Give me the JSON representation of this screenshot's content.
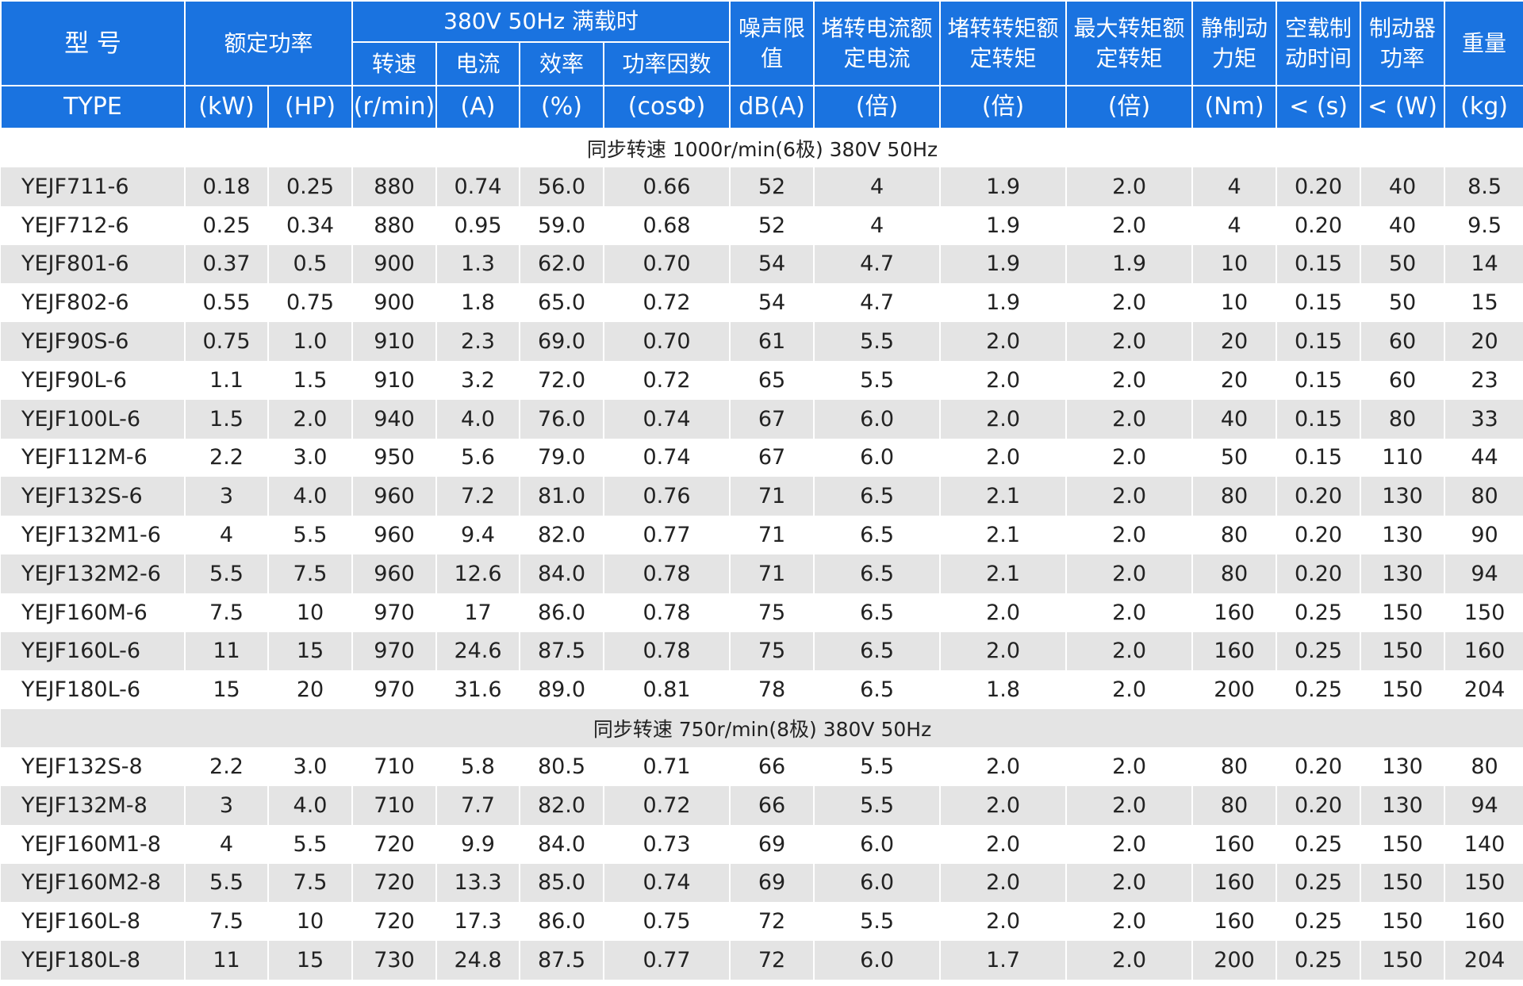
{
  "header": {
    "model": "型 号",
    "rated_power": "额定功率",
    "full_load": "380V 50Hz 满载时",
    "speed": "转速",
    "current": "电流",
    "efficiency": "效率",
    "power_factor": "功率因数",
    "noise": "噪声限值",
    "locked_current": "堵转电流额定电流",
    "locked_torque": "堵转转矩额定转矩",
    "max_torque": "最大转矩额定转矩",
    "static_brake": "静制动力矩",
    "brake_time": "空载制动时间",
    "brake_power": "制动器功率",
    "weight": "重量"
  },
  "units": [
    "TYPE",
    "(kW)",
    "(HP)",
    "(r/min)",
    "(A)",
    "(%)",
    "(cosΦ)",
    "dB(A)",
    "(倍)",
    "(倍)",
    "(倍)",
    "(Nm)",
    "< (s)",
    "< (W)",
    "(kg)"
  ],
  "sections": [
    {
      "title": "同步转速 1000r/min(6极) 380V 50Hz",
      "rows": [
        [
          "YEJF711-6",
          "0.18",
          "0.25",
          "880",
          "0.74",
          "56.0",
          "0.66",
          "52",
          "4",
          "1.9",
          "2.0",
          "4",
          "0.20",
          "40",
          "8.5"
        ],
        [
          "YEJF712-6",
          "0.25",
          "0.34",
          "880",
          "0.95",
          "59.0",
          "0.68",
          "52",
          "4",
          "1.9",
          "2.0",
          "4",
          "0.20",
          "40",
          "9.5"
        ],
        [
          "YEJF801-6",
          "0.37",
          "0.5",
          "900",
          "1.3",
          "62.0",
          "0.70",
          "54",
          "4.7",
          "1.9",
          "1.9",
          "10",
          "0.15",
          "50",
          "14"
        ],
        [
          "YEJF802-6",
          "0.55",
          "0.75",
          "900",
          "1.8",
          "65.0",
          "0.72",
          "54",
          "4.7",
          "1.9",
          "2.0",
          "10",
          "0.15",
          "50",
          "15"
        ],
        [
          "YEJF90S-6",
          "0.75",
          "1.0",
          "910",
          "2.3",
          "69.0",
          "0.70",
          "61",
          "5.5",
          "2.0",
          "2.0",
          "20",
          "0.15",
          "60",
          "20"
        ],
        [
          "YEJF90L-6",
          "1.1",
          "1.5",
          "910",
          "3.2",
          "72.0",
          "0.72",
          "65",
          "5.5",
          "2.0",
          "2.0",
          "20",
          "0.15",
          "60",
          "23"
        ],
        [
          "YEJF100L-6",
          "1.5",
          "2.0",
          "940",
          "4.0",
          "76.0",
          "0.74",
          "67",
          "6.0",
          "2.0",
          "2.0",
          "40",
          "0.15",
          "80",
          "33"
        ],
        [
          "YEJF112M-6",
          "2.2",
          "3.0",
          "950",
          "5.6",
          "79.0",
          "0.74",
          "67",
          "6.0",
          "2.0",
          "2.0",
          "50",
          "0.15",
          "110",
          "44"
        ],
        [
          "YEJF132S-6",
          "3",
          "4.0",
          "960",
          "7.2",
          "81.0",
          "0.76",
          "71",
          "6.5",
          "2.1",
          "2.0",
          "80",
          "0.20",
          "130",
          "80"
        ],
        [
          "YEJF132M1-6",
          "4",
          "5.5",
          "960",
          "9.4",
          "82.0",
          "0.77",
          "71",
          "6.5",
          "2.1",
          "2.0",
          "80",
          "0.20",
          "130",
          "90"
        ],
        [
          "YEJF132M2-6",
          "5.5",
          "7.5",
          "960",
          "12.6",
          "84.0",
          "0.78",
          "71",
          "6.5",
          "2.1",
          "2.0",
          "80",
          "0.20",
          "130",
          "94"
        ],
        [
          "YEJF160M-6",
          "7.5",
          "10",
          "970",
          "17",
          "86.0",
          "0.78",
          "75",
          "6.5",
          "2.0",
          "2.0",
          "160",
          "0.25",
          "150",
          "150"
        ],
        [
          "YEJF160L-6",
          "11",
          "15",
          "970",
          "24.6",
          "87.5",
          "0.78",
          "75",
          "6.5",
          "2.0",
          "2.0",
          "160",
          "0.25",
          "150",
          "160"
        ],
        [
          "YEJF180L-6",
          "15",
          "20",
          "970",
          "31.6",
          "89.0",
          "0.81",
          "78",
          "6.5",
          "1.8",
          "2.0",
          "200",
          "0.25",
          "150",
          "204"
        ]
      ]
    },
    {
      "title": "同步转速 750r/min(8极) 380V 50Hz",
      "rows": [
        [
          "YEJF132S-8",
          "2.2",
          "3.0",
          "710",
          "5.8",
          "80.5",
          "0.71",
          "66",
          "5.5",
          "2.0",
          "2.0",
          "80",
          "0.20",
          "130",
          "80"
        ],
        [
          "YEJF132M-8",
          "3",
          "4.0",
          "710",
          "7.7",
          "82.0",
          "0.72",
          "66",
          "5.5",
          "2.0",
          "2.0",
          "80",
          "0.20",
          "130",
          "94"
        ],
        [
          "YEJF160M1-8",
          "4",
          "5.5",
          "720",
          "9.9",
          "84.0",
          "0.73",
          "69",
          "6.0",
          "2.0",
          "2.0",
          "160",
          "0.25",
          "150",
          "140"
        ],
        [
          "YEJF160M2-8",
          "5.5",
          "7.5",
          "720",
          "13.3",
          "85.0",
          "0.74",
          "69",
          "6.0",
          "2.0",
          "2.0",
          "160",
          "0.25",
          "150",
          "150"
        ],
        [
          "YEJF160L-8",
          "7.5",
          "10",
          "720",
          "17.3",
          "86.0",
          "0.75",
          "72",
          "5.5",
          "2.0",
          "2.0",
          "160",
          "0.25",
          "150",
          "160"
        ],
        [
          "YEJF180L-8",
          "11",
          "15",
          "730",
          "24.8",
          "87.5",
          "0.77",
          "72",
          "6.0",
          "1.7",
          "2.0",
          "200",
          "0.25",
          "150",
          "204"
        ]
      ]
    }
  ]
}
